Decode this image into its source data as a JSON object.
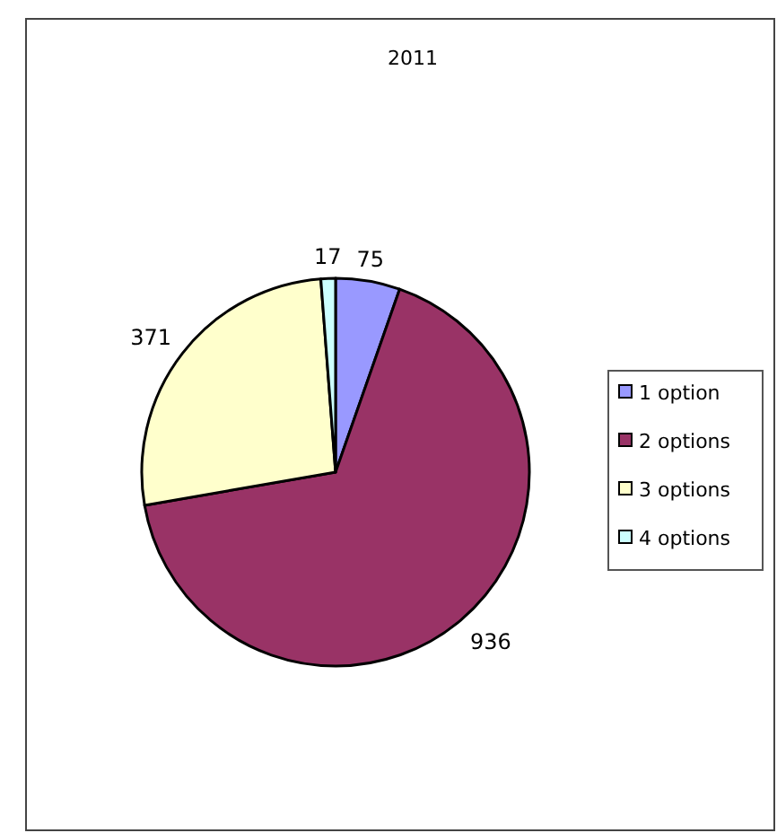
{
  "chart_data": {
    "type": "pie",
    "title": "2011",
    "categories": [
      "1 option",
      "2 options",
      "3 options",
      "4 options"
    ],
    "values": [
      75,
      936,
      371,
      17
    ],
    "colors": [
      "#9999ff",
      "#993366",
      "#ffffcc",
      "#ccffff"
    ],
    "data_labels": true,
    "legend": "right"
  }
}
